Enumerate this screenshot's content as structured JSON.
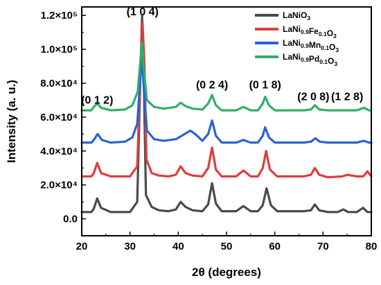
{
  "chart_data": {
    "type": "line",
    "title": "",
    "xlabel": "2θ (degrees)",
    "ylabel": "Intensity (a. u.)",
    "xlim": [
      20,
      80
    ],
    "ylim": [
      -10000,
      125000
    ],
    "x_ticks": [
      "20",
      "30",
      "40",
      "50",
      "60",
      "70",
      "80"
    ],
    "y_ticks": [
      "0.0",
      "2.0×10⁴",
      "4.0×10⁴",
      "6.0×10⁴",
      "8.0×10⁴",
      "1.0×10⁵",
      "1.2×10⁵"
    ],
    "legend_position": "top-right",
    "grid": false,
    "peak_labels": [
      {
        "text": "(0 1 2)",
        "x": 23.2,
        "y": 68000
      },
      {
        "text": "(1 0 4)",
        "x": 32.6,
        "y": 120000
      },
      {
        "text": "(0 2 4)",
        "x": 47.0,
        "y": 77000
      },
      {
        "text": "(0 1 8)",
        "x": 58.0,
        "y": 77000
      },
      {
        "text": "(2 0 8)",
        "x": 68.0,
        "y": 70000
      },
      {
        "text": "(1 2 8)",
        "x": 75.0,
        "y": 70000
      }
    ],
    "series": [
      {
        "name": "LaNiO",
        "name_sub": "3",
        "color": "#4a4a4a",
        "x": [
          20,
          22,
          22.5,
          23.2,
          24,
          26,
          30,
          31.5,
          32.2,
          32.5,
          32.8,
          33.3,
          34.5,
          36,
          38,
          39.5,
          40.5,
          41.5,
          43,
          45,
          46.2,
          47.0,
          47.8,
          49,
          52,
          53.5,
          55,
          56.5,
          57.5,
          58.3,
          59.2,
          60.5,
          63,
          66,
          67.5,
          68.3,
          69.2,
          71,
          73,
          74.2,
          75.2,
          77,
          78.3,
          79.2,
          80
        ],
        "y": [
          4000,
          4000,
          6000,
          12000,
          6500,
          4000,
          4000,
          10000,
          90000,
          120000,
          90000,
          14000,
          7000,
          5000,
          4500,
          5500,
          10000,
          7000,
          5000,
          4500,
          8500,
          21000,
          9000,
          4500,
          4500,
          7500,
          4500,
          4500,
          8000,
          18000,
          8000,
          4500,
          4500,
          4500,
          5000,
          8500,
          5000,
          4000,
          4000,
          5500,
          4000,
          4000,
          6500,
          4000,
          4000
        ]
      },
      {
        "name": "LaNi",
        "name_sub": "0.9",
        "name_mid": "Fe",
        "name_sub2": "0.1",
        "name_end": "O",
        "name_sub3": "3",
        "color": "#e03c3c",
        "x": [
          20,
          22,
          22.5,
          23.2,
          24,
          26,
          30,
          31.5,
          32.2,
          32.6,
          33.0,
          33.4,
          34.5,
          36,
          38,
          39.5,
          40.5,
          41.5,
          43,
          45,
          46.2,
          47.0,
          47.8,
          49,
          52,
          53.5,
          55,
          56.5,
          57.5,
          58.2,
          59.0,
          60.5,
          63,
          66,
          67.5,
          68.3,
          69.2,
          71,
          74,
          75,
          77,
          78.3,
          79.2,
          80
        ],
        "y": [
          25000,
          25000,
          27000,
          33000,
          27000,
          25000,
          25000,
          31000,
          90000,
          116000,
          90000,
          35000,
          27000,
          25500,
          25000,
          26000,
          31000,
          27000,
          25500,
          25000,
          30000,
          42000,
          29000,
          25000,
          25000,
          28500,
          25000,
          25000,
          30000,
          40000,
          29000,
          25000,
          25000,
          25000,
          26000,
          30000,
          26000,
          24500,
          25000,
          26000,
          25000,
          25000,
          28000,
          25000
        ]
      },
      {
        "name": "LaNi",
        "name_sub": "0.9",
        "name_mid": "Mn",
        "name_sub2": "0.1",
        "name_end": "O",
        "name_sub3": "3",
        "color": "#2b62d4",
        "x": [
          20,
          22,
          22.5,
          23.3,
          24.2,
          26,
          29,
          30.5,
          31.5,
          32.2,
          32.5,
          32.8,
          33.5,
          35,
          37,
          39.5,
          41,
          42.5,
          43.5,
          45,
          46.2,
          47.0,
          47.8,
          49,
          52,
          53.5,
          55,
          56.5,
          57.5,
          58.0,
          58.8,
          60,
          63,
          66,
          67.5,
          68.4,
          69.3,
          71,
          74,
          77,
          78.5,
          79.5,
          80
        ],
        "y": [
          45000,
          45000,
          46500,
          50000,
          46500,
          45000,
          45500,
          48000,
          56000,
          85000,
          97000,
          80000,
          52000,
          47000,
          46000,
          47000,
          49500,
          52000,
          50000,
          46000,
          50000,
          58000,
          49000,
          45000,
          45000,
          46500,
          45000,
          45000,
          49000,
          54000,
          48000,
          45000,
          45000,
          45000,
          45500,
          47500,
          45500,
          45000,
          45000,
          45000,
          46000,
          45000,
          45000
        ]
      },
      {
        "name": "LaNi",
        "name_sub": "0.9",
        "name_mid": "Pd",
        "name_sub2": "0.1",
        "name_end": "O",
        "name_sub3": "3",
        "color": "#2fae6b",
        "x": [
          20,
          22,
          22.5,
          23.2,
          24,
          26,
          29,
          30.5,
          31.6,
          32.2,
          32.5,
          32.8,
          33.5,
          35,
          37,
          39.5,
          40.5,
          41.5,
          43,
          45,
          46.2,
          47.0,
          47.8,
          49,
          52,
          53.5,
          55,
          56.5,
          57.5,
          58.0,
          58.8,
          60,
          63,
          66,
          67.5,
          68.3,
          69.2,
          71,
          74,
          77,
          78.5,
          79.5,
          80
        ],
        "y": [
          64000,
          64000,
          66000,
          68000,
          65500,
          64000,
          64500,
          67000,
          75000,
          95000,
          104000,
          90000,
          70000,
          66000,
          65000,
          66000,
          68500,
          66500,
          65000,
          64500,
          68000,
          73000,
          67000,
          64000,
          64000,
          66000,
          64000,
          64000,
          68000,
          72000,
          67000,
          64000,
          64000,
          64000,
          64500,
          67000,
          64500,
          64000,
          64000,
          64000,
          65500,
          64000,
          64000
        ]
      }
    ]
  }
}
